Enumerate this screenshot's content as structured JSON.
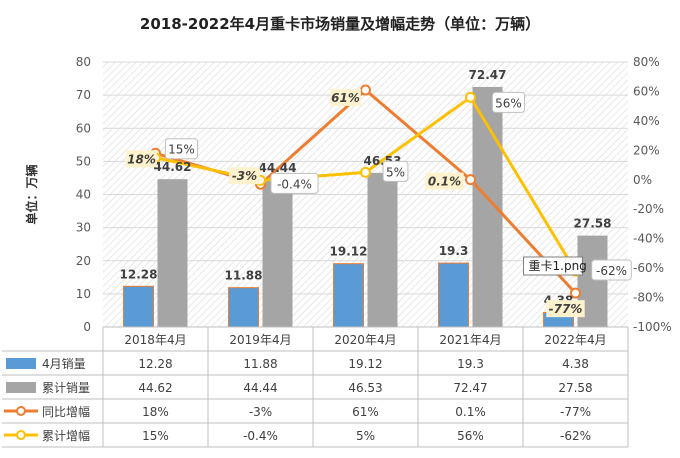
{
  "chart_data": {
    "type": "bar",
    "title": "2018-2022年4月重卡市场销量及增幅走势（单位：万辆）",
    "ylabel": "单位：万辆",
    "ylim": [
      0,
      80
    ],
    "y2lim": [
      -100,
      80
    ],
    "categories": [
      "2018年4月",
      "2019年4月",
      "2020年4月",
      "2021年4月",
      "2022年4月"
    ],
    "y_ticks": [
      "0",
      "10",
      "20",
      "30",
      "40",
      "50",
      "60",
      "70",
      "80"
    ],
    "y2_ticks": [
      "-100%",
      "-80%",
      "-60%",
      "-40%",
      "-20%",
      "0%",
      "20%",
      "40%",
      "60%",
      "80%"
    ],
    "bar_series": [
      {
        "name": "4月销量",
        "color": "#5b9bd5",
        "values": [
          12.28,
          11.88,
          19.12,
          19.3,
          4.38
        ],
        "labels": [
          "12.28",
          "11.88",
          "19.12",
          "19.3",
          "4.38"
        ],
        "table": [
          "12.28",
          "11.88",
          "19.12",
          "19.3",
          "4.38"
        ]
      },
      {
        "name": "累计销量",
        "color": "#a5a5a5",
        "values": [
          44.62,
          44.44,
          46.53,
          72.47,
          27.58
        ],
        "labels": [
          "44.62",
          "44.44",
          "46.53",
          "72.47",
          "27.58"
        ],
        "table": [
          "44.62",
          "44.44",
          "46.53",
          "72.47",
          "27.58"
        ]
      }
    ],
    "line_series": [
      {
        "name": "同比增幅",
        "color": "#ed7d31",
        "values": [
          18,
          -3,
          61,
          0.1,
          -77
        ],
        "labels": [
          "18%",
          "-3%",
          "61%",
          "0.1%",
          "-77%"
        ],
        "table": [
          "18%",
          "-3%",
          "61%",
          "0.1%",
          "-77%"
        ]
      },
      {
        "name": "累计增幅",
        "color": "#ffc000",
        "values": [
          15,
          -0.4,
          5,
          56,
          -62
        ],
        "labels": [
          "15%",
          "-0.4%",
          "5%",
          "56%",
          "-62%"
        ],
        "table": [
          "15%",
          "-0.4%",
          "5%",
          "56%",
          "-62%"
        ]
      }
    ],
    "overlay_label": "重卡1.png",
    "grid": true,
    "legend": "bottom-table"
  }
}
